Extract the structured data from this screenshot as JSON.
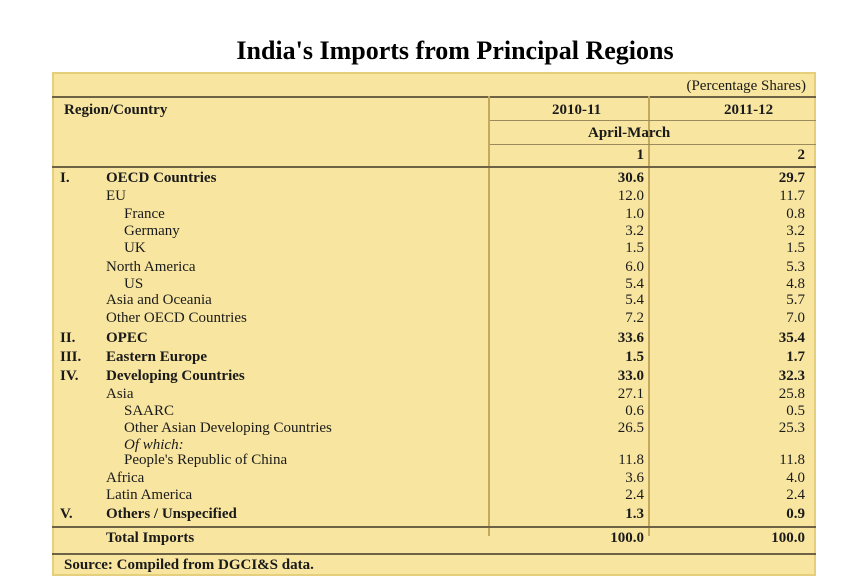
{
  "title": "India's Imports from Principal Regions",
  "unit_note": "(Percentage Shares)",
  "header": {
    "region_col": "Region/Country",
    "year1": "2010-11",
    "year2": "2011-12",
    "period": "April-March",
    "col1": "1",
    "col2": "2"
  },
  "rows": [
    {
      "num": "I.",
      "label": "OECD Countries",
      "v1": "30.6",
      "v2": "29.7"
    },
    {
      "num": "",
      "label": "EU",
      "v1": "12.0",
      "v2": "11.7"
    },
    {
      "num": "",
      "label": "France",
      "v1": "1.0",
      "v2": "0.8"
    },
    {
      "num": "",
      "label": "Germany",
      "v1": "3.2",
      "v2": "3.2"
    },
    {
      "num": "",
      "label": "UK",
      "v1": "1.5",
      "v2": "1.5"
    },
    {
      "num": "",
      "label": "North America",
      "v1": "6.0",
      "v2": "5.3"
    },
    {
      "num": "",
      "label": "US",
      "v1": "5.4",
      "v2": "4.8"
    },
    {
      "num": "",
      "label": "Asia and Oceania",
      "v1": "5.4",
      "v2": "5.7"
    },
    {
      "num": "",
      "label": "Other OECD Countries",
      "v1": "7.2",
      "v2": "7.0"
    },
    {
      "num": "II.",
      "label": "OPEC",
      "v1": "33.6",
      "v2": "35.4"
    },
    {
      "num": "III.",
      "label": "Eastern Europe",
      "v1": "1.5",
      "v2": "1.7"
    },
    {
      "num": "IV.",
      "label": "Developing Countries",
      "v1": "33.0",
      "v2": "32.3"
    },
    {
      "num": "",
      "label": "Asia",
      "v1": "27.1",
      "v2": "25.8"
    },
    {
      "num": "",
      "label": "SAARC",
      "v1": "0.6",
      "v2": "0.5"
    },
    {
      "num": "",
      "label": "Other Asian Developing Countries",
      "v1": "26.5",
      "v2": "25.3"
    },
    {
      "num": "",
      "label": "Of which:",
      "v1": "",
      "v2": ""
    },
    {
      "num": "",
      "label": "People's Republic of China",
      "v1": "11.8",
      "v2": "11.8"
    },
    {
      "num": "",
      "label": "Africa",
      "v1": "3.6",
      "v2": "4.0"
    },
    {
      "num": "",
      "label": "Latin America",
      "v1": "2.4",
      "v2": "2.4"
    },
    {
      "num": "V.",
      "label": "Others / Unspecified",
      "v1": "1.3",
      "v2": "0.9"
    },
    {
      "num": "",
      "label": "Total Imports",
      "v1": "100.0",
      "v2": "100.0"
    }
  ],
  "source": "Source: Compiled from DGCI&S data."
}
